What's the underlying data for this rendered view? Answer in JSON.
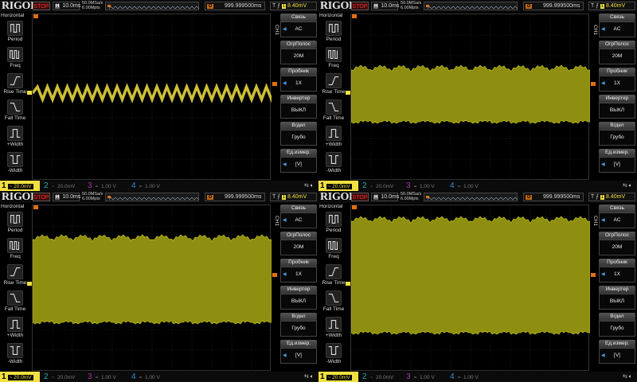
{
  "trace_color": "#f0e040",
  "screens": [
    {
      "brand": "RIGOL",
      "run_state": "STOP",
      "timebase_label": "H",
      "timebase": "10.0ms",
      "sample_rate": "50.0MSa/s",
      "memory_depth": "6.00Mpts",
      "delay_label": "D",
      "delay": "999.999500ms",
      "trigger_level": "8.40mV",
      "left_menu": {
        "title": "Horizontal",
        "items": [
          "Period",
          "Freq",
          "Rise Time",
          "Fall Time",
          "+Width",
          "-Width"
        ]
      },
      "channel_label": "CH1",
      "settings": [
        {
          "label": "Связь",
          "value": "AC"
        },
        {
          "label": "ОгрПолос",
          "value": "20M"
        },
        {
          "label": "Пробник",
          "value": "1X"
        },
        {
          "label": "Инвертер",
          "value": "ВЫКЛ"
        },
        {
          "label": "В/дел",
          "value": "Грубо"
        },
        {
          "label": "Ед.измер.",
          "value": "[V]"
        }
      ],
      "channels": [
        {
          "num": "1",
          "scale": "20.0mV",
          "coupling": "~"
        },
        {
          "num": "2",
          "scale": "20.0mV",
          "coupling": "~"
        },
        {
          "num": "3",
          "scale": "1.00 V",
          "coupling": "="
        },
        {
          "num": "4",
          "scale": "1.00 V",
          "coupling": "="
        }
      ],
      "waveform": "triangle"
    },
    {
      "brand": "RIGOL",
      "run_state": "STOP",
      "timebase_label": "H",
      "timebase": "10.0ms",
      "sample_rate": "50.0MSa/s",
      "memory_depth": "6.00Mpts",
      "delay_label": "D",
      "delay": "999.999500ms",
      "trigger_level": "8.40mV",
      "left_menu": {
        "title": "Horizontal",
        "items": [
          "Period",
          "Freq",
          "Rise Time",
          "Fall Time",
          "+Width",
          "-Width"
        ]
      },
      "channel_label": "CH1",
      "settings": [
        {
          "label": "Связь",
          "value": "AC"
        },
        {
          "label": "ОгрПолос",
          "value": "20M"
        },
        {
          "label": "Пробник",
          "value": "1X"
        },
        {
          "label": "Инвертер",
          "value": "ВЫКЛ"
        },
        {
          "label": "В/дел",
          "value": "Грубо"
        },
        {
          "label": "Ед.измер.",
          "value": "[V]"
        }
      ],
      "channels": [
        {
          "num": "1",
          "scale": "20.0mV",
          "coupling": "~"
        },
        {
          "num": "2",
          "scale": "20.0mV",
          "coupling": "~"
        },
        {
          "num": "3",
          "scale": "1.00 V",
          "coupling": "="
        },
        {
          "num": "4",
          "scale": "1.00 V",
          "coupling": "="
        }
      ],
      "waveform": "band"
    },
    {
      "brand": "RIGOL",
      "run_state": "STOP",
      "timebase_label": "H",
      "timebase": "10.0ms",
      "sample_rate": "50.0MSa/s",
      "memory_depth": "6.00Mpts",
      "delay_label": "D",
      "delay": "999.999500ms",
      "trigger_level": "8.40mV",
      "left_menu": {
        "title": "Horizontal",
        "items": [
          "Period",
          "Freq",
          "Rise Time",
          "Fall Time",
          "+Width",
          "-Width"
        ]
      },
      "channel_label": "CH1",
      "settings": [
        {
          "label": "Связь",
          "value": "AC"
        },
        {
          "label": "ОгрПолос",
          "value": "20M"
        },
        {
          "label": "Пробник",
          "value": "1X"
        },
        {
          "label": "Инвертер",
          "value": "ВЫКЛ"
        },
        {
          "label": "В/дел",
          "value": "Грубо"
        },
        {
          "label": "Ед.измер.",
          "value": "[V]"
        }
      ],
      "channels": [
        {
          "num": "1",
          "scale": "20.0mV",
          "coupling": "~"
        },
        {
          "num": "2",
          "scale": "20.0mV",
          "coupling": "~"
        },
        {
          "num": "3",
          "scale": "1.00 V",
          "coupling": "="
        },
        {
          "num": "4",
          "scale": "1.00 V",
          "coupling": "="
        }
      ],
      "waveform": "band"
    },
    {
      "brand": "RIGOL",
      "run_state": "STOP",
      "timebase_label": "H",
      "timebase": "10.0ms",
      "sample_rate": "50.0MSa/s",
      "memory_depth": "6.00Mpts",
      "delay_label": "D",
      "delay": "999.999500ms",
      "trigger_level": "8.40mV",
      "left_menu": {
        "title": "Horizontal",
        "items": [
          "Period",
          "Freq",
          "Rise Time",
          "Fall Time",
          "+Width",
          "-Width"
        ]
      },
      "channel_label": "CH1",
      "settings": [
        {
          "label": "Связь",
          "value": "AC"
        },
        {
          "label": "ОгрПолос",
          "value": "20M"
        },
        {
          "label": "Пробник",
          "value": "1X"
        },
        {
          "label": "Инвертер",
          "value": "ВЫКЛ"
        },
        {
          "label": "В/дел",
          "value": "Грубо"
        },
        {
          "label": "Ед.измер.",
          "value": "[V]"
        }
      ],
      "channels": [
        {
          "num": "1",
          "scale": "20.0mV",
          "coupling": "~"
        },
        {
          "num": "2",
          "scale": "20.0mV",
          "coupling": "~"
        },
        {
          "num": "3",
          "scale": "1.00 V",
          "coupling": "="
        },
        {
          "num": "4",
          "scale": "1.00 V",
          "coupling": "="
        }
      ],
      "waveform": "band"
    }
  ]
}
